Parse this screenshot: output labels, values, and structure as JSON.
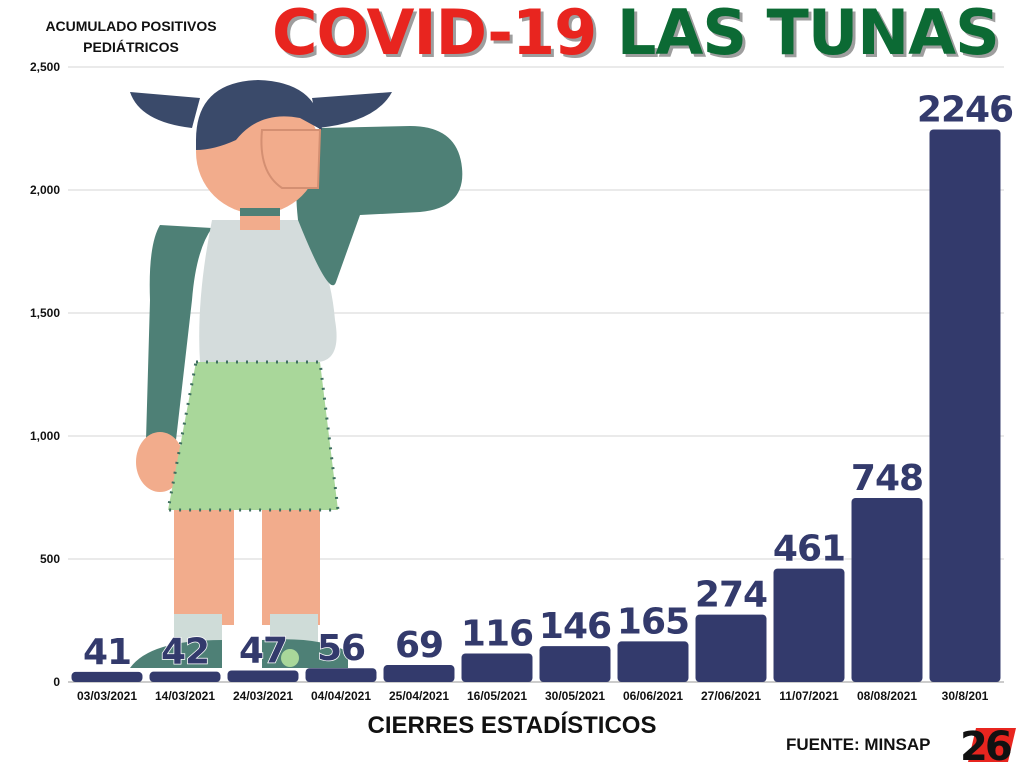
{
  "title": {
    "part1": "COVID-19",
    "part2": "LAS TUNAS"
  },
  "source": "FUENTE: MINSAP",
  "logo_text": "26",
  "colors": {
    "bar": "#333a6c",
    "title_red": "#e8251f",
    "title_green": "#0c6a34",
    "grid": "#d6d6d6"
  },
  "chart_data": {
    "type": "bar",
    "ylabel": "ACUMULADO POSITIVOS PEDIÁTRICOS",
    "xlabel": "CIERRES ESTADÍSTICOS",
    "categories": [
      "03/03/2021",
      "14/03/2021",
      "24/03/2021",
      "04/04/2021",
      "25/04/2021",
      "16/05/2021",
      "30/05/2021",
      "06/06/2021",
      "27/06/2021",
      "11/07/2021",
      "08/08/2021",
      "30/8/201"
    ],
    "values": [
      41,
      42,
      47,
      56,
      69,
      116,
      146,
      165,
      274,
      461,
      748,
      2246
    ],
    "data_labels": [
      "41",
      "42",
      "47",
      "56",
      "69",
      "116",
      "146",
      "165",
      "274",
      "461",
      "748",
      "2246"
    ],
    "ylim": [
      0,
      2500
    ],
    "yticks": [
      0,
      500,
      1000,
      1500,
      2000,
      2500
    ],
    "ytick_labels": [
      "0",
      "500",
      "1,000",
      "1,500",
      "2,000",
      "2,500"
    ],
    "grid": true
  }
}
